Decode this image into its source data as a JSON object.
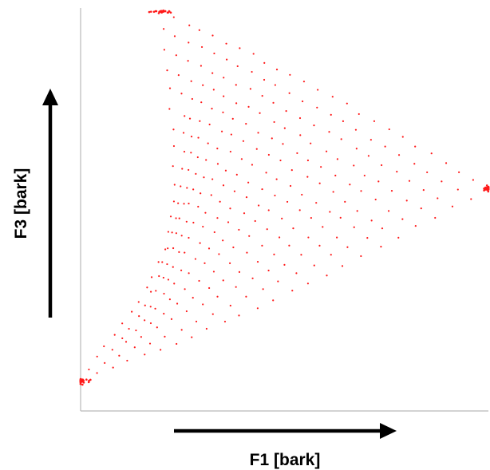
{
  "chart_data": {
    "type": "scatter",
    "title": "",
    "xlabel": "F1 [bark]",
    "ylabel": "F3 [bark]",
    "xlim": [
      0,
      1
    ],
    "ylim": [
      0,
      1
    ],
    "grid": false,
    "legend": "none",
    "ticks": "none",
    "point_color": "#ff1a1a",
    "corners": {
      "top": {
        "x": 0.2,
        "y": 1.0
      },
      "right": {
        "x": 1.0,
        "y": 0.54
      },
      "bottom": {
        "x": 0.0,
        "y": 0.04
      }
    },
    "grid_steps": 24
  }
}
